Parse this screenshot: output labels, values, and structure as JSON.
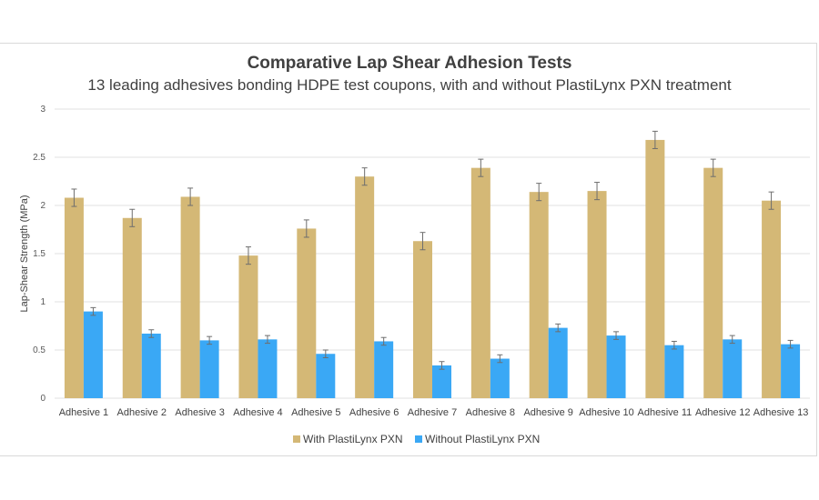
{
  "chart_data": {
    "type": "bar",
    "title": "Comparative Lap Shear Adhesion Tests",
    "subtitle": "13 leading adhesives bonding HDPE test coupons, with and without PlastiLynx PXN treatment",
    "xlabel": "",
    "ylabel": "Lap-Shear Strength (MPa)",
    "ylim": [
      0,
      3
    ],
    "yticks": [
      0,
      0.5,
      1,
      1.5,
      2,
      2.5,
      3
    ],
    "ytick_labels": [
      "0",
      "0.5",
      "1",
      "1.5",
      "2",
      "2.5",
      "3"
    ],
    "grid": true,
    "legend_position": "bottom",
    "categories": [
      "Adhesive 1",
      "Adhesive 2",
      "Adhesive 3",
      "Adhesive 4",
      "Adhesive 5",
      "Adhesive 6",
      "Adhesive 7",
      "Adhesive 8",
      "Adhesive 9",
      "Adhesive 10",
      "Adhesive 11",
      "Adhesive 12",
      "Adhesive 13"
    ],
    "series": [
      {
        "name": "With PlastiLynx PXN",
        "color": "#D4B876",
        "values": [
          2.08,
          1.87,
          2.09,
          1.48,
          1.76,
          2.3,
          1.63,
          2.39,
          2.14,
          2.15,
          2.68,
          2.39,
          2.05
        ],
        "error": [
          0.09,
          0.09,
          0.09,
          0.09,
          0.09,
          0.09,
          0.09,
          0.09,
          0.09,
          0.09,
          0.09,
          0.09,
          0.09
        ]
      },
      {
        "name": "Without PlastiLynx PXN",
        "color": "#3AA8F5",
        "values": [
          0.9,
          0.67,
          0.6,
          0.61,
          0.46,
          0.59,
          0.34,
          0.41,
          0.73,
          0.65,
          0.55,
          0.61,
          0.56
        ],
        "error": [
          0.04,
          0.04,
          0.04,
          0.04,
          0.04,
          0.04,
          0.04,
          0.04,
          0.04,
          0.04,
          0.04,
          0.04,
          0.04
        ]
      }
    ]
  }
}
